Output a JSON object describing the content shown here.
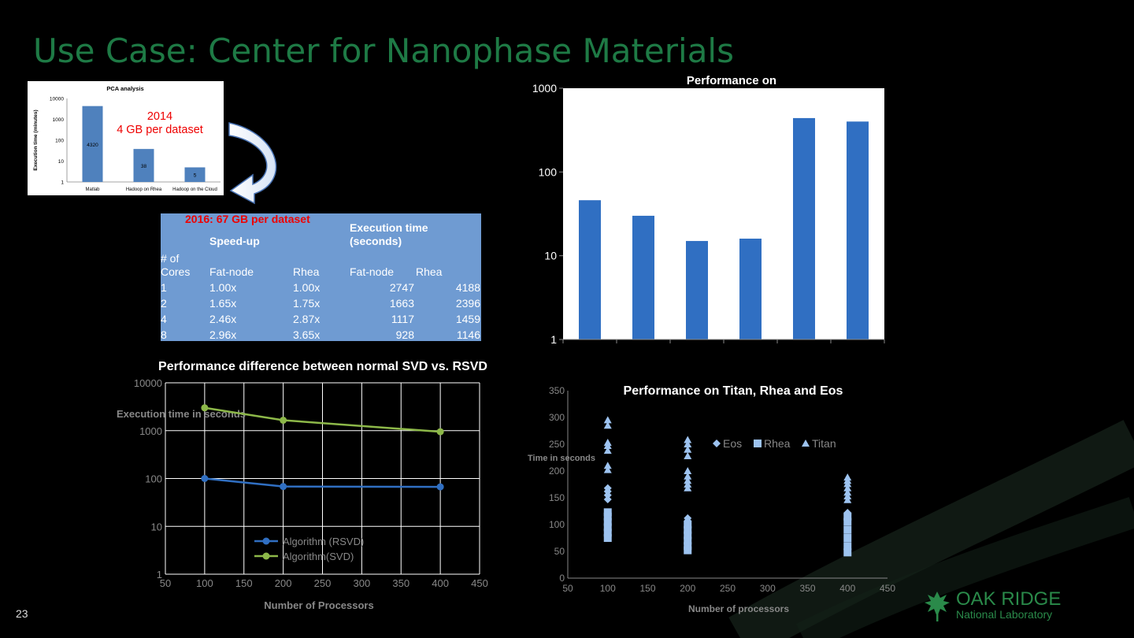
{
  "slide": {
    "title": "Use Case: Center for Nanophase Materials",
    "page_number": "23",
    "annotation_2014": [
      "2014",
      "4 GB per dataset"
    ],
    "annotation_2016": "2016: 67 GB per dataset",
    "logo_line1": "OAK RIDGE",
    "logo_line2": "National Laboratory"
  },
  "speedup_table": {
    "group_speedup": "Speed-up",
    "group_exec": [
      "Execution time",
      "(seconds)"
    ],
    "col_cores": [
      "# of",
      "Cores"
    ],
    "col_fat": "Fat-node",
    "col_rhea": "Rhea",
    "col_fat_t": "Fat-node",
    "col_rhea_t": "Rhea",
    "rows": [
      {
        "cores": "1",
        "sp_fat": "1.00x",
        "sp_rhea": "1.00x",
        "t_fat": "2747",
        "t_rhea": "4188"
      },
      {
        "cores": "2",
        "sp_fat": "1.65x",
        "sp_rhea": "1.75x",
        "t_fat": "1663",
        "t_rhea": "2396"
      },
      {
        "cores": "4",
        "sp_fat": "2.46x",
        "sp_rhea": "2.87x",
        "t_fat": "1117",
        "t_rhea": "1459"
      },
      {
        "cores": "8",
        "sp_fat": "2.96x",
        "sp_rhea": "3.65x",
        "t_fat": "928",
        "t_rhea": "1146"
      }
    ]
  },
  "chart_data": [
    {
      "id": "pca",
      "type": "bar",
      "title": "PCA analysis",
      "ylabel": "Execution time (minutes)",
      "yscale": "log",
      "ylim": [
        1,
        10000
      ],
      "yticks": [
        "10000",
        "1000",
        "100",
        "10",
        "1"
      ],
      "categories": [
        "Matlab",
        "Hadoop on Rhea",
        "Hadoop on the Cloud"
      ],
      "values": [
        4320,
        38,
        5
      ],
      "data_labels": [
        "4320",
        "38",
        "5"
      ],
      "color": "#4f81bd"
    },
    {
      "id": "perf_top",
      "type": "bar",
      "title": "Performance on",
      "yscale": "log",
      "ylim": [
        1,
        1000
      ],
      "yticks": [
        "1000",
        "100",
        "10",
        "1"
      ],
      "values": [
        46,
        30,
        15,
        16,
        440,
        400
      ],
      "color": "#306fc2"
    },
    {
      "id": "svd",
      "type": "line",
      "title": "Performance difference between normal SVD vs. RSVD",
      "xlabel": "Number of Processors",
      "ylabel": "Execution time in seconds",
      "yscale": "log",
      "xlim": [
        50,
        450
      ],
      "ylim": [
        1,
        10000
      ],
      "xticks": [
        "50",
        "100",
        "150",
        "200",
        "250",
        "300",
        "350",
        "400",
        "450"
      ],
      "yticks": [
        "10000",
        "1000",
        "100",
        "10",
        "1"
      ],
      "series": [
        {
          "name": "Algorithm (RSVD)",
          "color": "#306fc2",
          "x": [
            100,
            200,
            400
          ],
          "values": [
            100,
            68,
            67
          ]
        },
        {
          "name": "Algorithm(SVD)",
          "color": "#8db849",
          "x": [
            100,
            200,
            400
          ],
          "values": [
            3000,
            1650,
            950
          ]
        }
      ]
    },
    {
      "id": "tre",
      "type": "scatter",
      "title": "Performance on Titan, Rhea and Eos",
      "xlabel": "Number of processors",
      "ylabel": "Time in seconds",
      "xlim": [
        50,
        450
      ],
      "ylim": [
        0,
        350
      ],
      "xticks": [
        "50",
        "100",
        "150",
        "200",
        "250",
        "300",
        "350",
        "400",
        "450"
      ],
      "yticks": [
        "350",
        "300",
        "250",
        "200",
        "150",
        "100",
        "50",
        "0"
      ],
      "color": "#9dc3f0",
      "series": [
        {
          "name": "Eos",
          "marker": "diamond",
          "points": [
            [
              100,
              147
            ],
            [
              100,
              155
            ],
            [
              100,
              162
            ],
            [
              100,
              168
            ],
            [
              200,
              112
            ],
            [
              200,
              107
            ],
            [
              200,
              103
            ],
            [
              400,
              122
            ],
            [
              400,
              118
            ]
          ]
        },
        {
          "name": "Rhea",
          "marker": "square",
          "points": [
            [
              100,
              75
            ],
            [
              100,
              85
            ],
            [
              100,
              95
            ],
            [
              100,
              105
            ],
            [
              100,
              115
            ],
            [
              100,
              123
            ],
            [
              200,
              52
            ],
            [
              200,
              60
            ],
            [
              200,
              70
            ],
            [
              200,
              80
            ],
            [
              200,
              90
            ],
            [
              200,
              100
            ],
            [
              400,
              48
            ],
            [
              400,
              60
            ],
            [
              400,
              75
            ],
            [
              400,
              90
            ],
            [
              400,
              105
            ],
            [
              400,
              115
            ]
          ]
        },
        {
          "name": "Titan",
          "marker": "triangle",
          "points": [
            [
              100,
              295
            ],
            [
              100,
              285
            ],
            [
              100,
              253
            ],
            [
              100,
              247
            ],
            [
              100,
              238
            ],
            [
              100,
              210
            ],
            [
              100,
              202
            ],
            [
              200,
              258
            ],
            [
              200,
              250
            ],
            [
              200,
              240
            ],
            [
              200,
              228
            ],
            [
              200,
              200
            ],
            [
              200,
              190
            ],
            [
              200,
              182
            ],
            [
              200,
              175
            ],
            [
              200,
              168
            ],
            [
              400,
              188
            ],
            [
              400,
              182
            ],
            [
              400,
              176
            ],
            [
              400,
              168
            ],
            [
              400,
              160
            ],
            [
              400,
              153
            ],
            [
              400,
              146
            ]
          ]
        }
      ]
    }
  ]
}
